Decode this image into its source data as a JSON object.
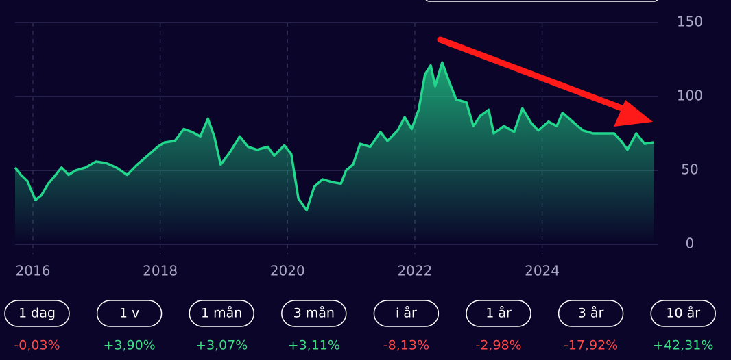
{
  "chart_data": {
    "type": "area-line",
    "x": [
      2015.72,
      2015.81,
      2015.91,
      2016.04,
      2016.13,
      2016.24,
      2016.34,
      2016.45,
      2016.56,
      2016.67,
      2016.83,
      2016.99,
      2017.15,
      2017.31,
      2017.48,
      2017.64,
      2017.8,
      2017.96,
      2018.07,
      2018.23,
      2018.37,
      2018.5,
      2018.63,
      2018.75,
      2018.85,
      2018.95,
      2019.09,
      2019.25,
      2019.38,
      2019.52,
      2019.69,
      2019.79,
      2019.95,
      2020.06,
      2020.17,
      2020.3,
      2020.42,
      2020.55,
      2020.71,
      2020.84,
      2020.92,
      2021.03,
      2021.14,
      2021.3,
      2021.46,
      2021.57,
      2021.73,
      2021.84,
      2021.95,
      2022.06,
      2022.16,
      2022.25,
      2022.32,
      2022.43,
      2022.54,
      2022.65,
      2022.81,
      2022.92,
      2023.03,
      2023.16,
      2023.24,
      2023.4,
      2023.56,
      2023.69,
      2023.83,
      2023.94,
      2024.1,
      2024.23,
      2024.32,
      2024.48,
      2024.64,
      2024.8,
      2024.97,
      2025.13,
      2025.24,
      2025.34,
      2025.48,
      2025.61,
      2025.75
    ],
    "values": [
      52,
      47,
      43,
      30,
      33,
      41,
      46,
      52,
      47,
      50,
      52,
      56,
      55,
      52,
      47,
      54,
      60,
      66,
      69,
      70,
      78,
      76,
      73,
      85,
      73,
      54,
      62,
      73,
      66,
      64,
      66,
      60,
      67,
      61,
      31,
      23,
      39,
      44,
      42,
      41,
      50,
      54,
      68,
      66,
      76,
      70,
      77,
      86,
      78,
      91,
      115,
      121,
      107,
      123,
      110,
      98,
      96,
      80,
      87,
      91,
      75,
      80,
      76,
      92,
      82,
      77,
      83,
      80,
      89,
      83,
      77,
      75,
      75,
      75,
      70,
      64,
      75,
      68,
      69
    ],
    "color": "#22d68c",
    "xlim": [
      2015.72,
      2025.75
    ],
    "xticks": [
      2016,
      2018,
      2020,
      2022,
      2024
    ],
    "ylim": [
      0,
      150
    ],
    "yticks": [
      0,
      50,
      100,
      150
    ],
    "grid": true
  },
  "periods": [
    {
      "label": "1 dag",
      "change": "-0,03%",
      "color": "#ff4a4a"
    },
    {
      "label": "1 v",
      "change": "+3,90%",
      "color": "#3ddc84"
    },
    {
      "label": "1 mån",
      "change": "+3,07%",
      "color": "#3ddc84"
    },
    {
      "label": "3 mån",
      "change": "+3,11%",
      "color": "#3ddc84"
    },
    {
      "label": "i år",
      "change": "-8,13%",
      "color": "#ff4a4a"
    },
    {
      "label": "1 år",
      "change": "-2,98%",
      "color": "#ff4a4a"
    },
    {
      "label": "3 år",
      "change": "-17,92%",
      "color": "#ff4a4a"
    },
    {
      "label": "10 år",
      "change": "+42,31%",
      "color": "#3ddc84"
    }
  ]
}
